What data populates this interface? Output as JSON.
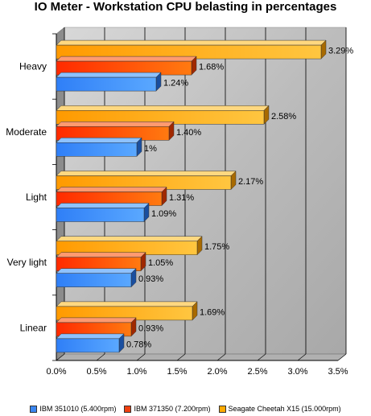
{
  "chart_data": {
    "type": "bar",
    "orientation": "horizontal",
    "title": "IO Meter - Workstation CPU belasting in percentages",
    "categories": [
      "Heavy",
      "Moderate",
      "Light",
      "Very light",
      "Linear"
    ],
    "series": [
      {
        "name": "IBM 351010 (5.400rpm)",
        "color": "#3a86f0",
        "values": [
          1.24,
          1.0,
          1.09,
          0.93,
          0.78
        ],
        "labels": [
          "1.24%",
          "1%",
          "1.09%",
          "0.93%",
          "0.78%"
        ]
      },
      {
        "name": "IBM 371350 (7.200rpm)",
        "color": "#f04010",
        "values": [
          1.68,
          1.4,
          1.31,
          1.05,
          0.93
        ],
        "labels": [
          "1.68%",
          "1.40%",
          "1.31%",
          "1.05%",
          "0.93%"
        ]
      },
      {
        "name": "Seagate Cheetah X15 (15.000rpm)",
        "color": "#ffaa00",
        "values": [
          3.29,
          2.58,
          2.17,
          1.75,
          1.69
        ],
        "labels": [
          "3.29%",
          "2.58%",
          "2.17%",
          "1.75%",
          "1.69%"
        ]
      }
    ],
    "xlim": [
      0,
      3.5
    ],
    "xticks": [
      "0.0%",
      "0.5%",
      "1.0%",
      "1.5%",
      "2.0%",
      "2.5%",
      "3.0%",
      "3.5%"
    ],
    "grid": true,
    "legend_position": "bottom"
  }
}
